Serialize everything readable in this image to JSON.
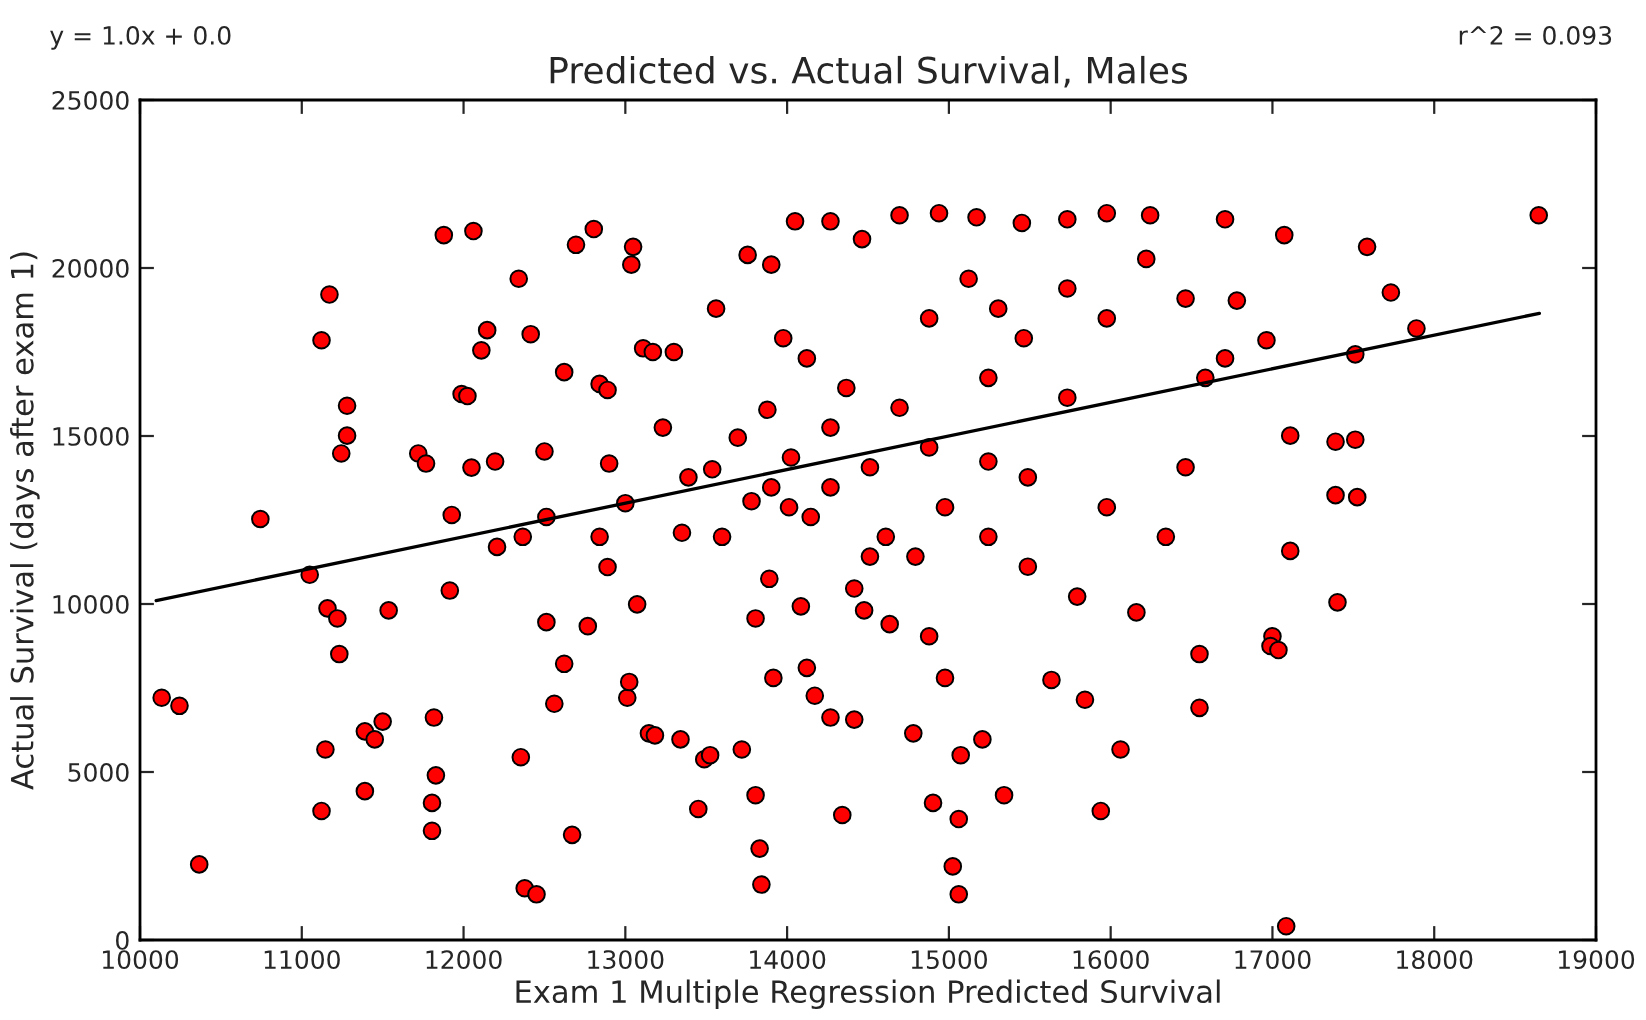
{
  "chart_data": {
    "type": "scatter",
    "title": "Predicted vs. Actual Survival, Males",
    "xlabel": "Exam 1 Multiple Regression Predicted Survival",
    "ylabel": "Actual Survival (days after exam 1)",
    "annotations": [
      "y = 1.0x + 0.0",
      "r^2 = 0.093"
    ],
    "xlim": [
      10000,
      19000
    ],
    "xticks": [
      10000,
      11000,
      12000,
      13000,
      14000,
      15000,
      16000,
      17000,
      18000,
      19000
    ],
    "ylim": [
      0,
      25000
    ],
    "yticks": [
      0,
      5000,
      10000,
      15000,
      20000,
      25000
    ],
    "grid": false,
    "series": [
      {
        "color": "#ff0000",
        "marker": "circle",
        "x": [
          10134,
          10244,
          10366,
          10744,
          11049,
          11122,
          11171,
          11159,
          11220,
          11232,
          11280,
          11280,
          11390,
          11451,
          11390,
          11500,
          11146,
          11122,
          11244,
          11537,
          11720,
          11768,
          11878,
          12061,
          11988,
          12024,
          12110,
          12146,
          12049,
          12195,
          12207,
          11927,
          11805,
          11805,
          11817,
          11829,
          11915,
          12341,
          12415,
          12500,
          12366,
          12622,
          12512,
          12512,
          12622,
          12561,
          12354,
          12378,
          12451,
          12671,
          12695,
          12805,
          12841,
          12890,
          12900,
          13000,
          12890,
          12768,
          12841,
          13048,
          13037,
          13110,
          13170,
          13300,
          13350,
          13012,
          13024,
          13073,
          13146,
          13183,
          13341,
          13451,
          13488,
          13524,
          13720,
          13805,
          13830,
          13841,
          13890,
          13915,
          13805,
          14012,
          14085,
          14122,
          14171,
          14268,
          14341,
          14415,
          14415,
          14476,
          14512,
          14610,
          14634,
          14780,
          14878,
          14976,
          15024,
          15061,
          15073,
          15061,
          14902,
          15207,
          15341,
          15634,
          15841,
          15939,
          16159,
          16061,
          16549,
          16549,
          17000,
          16988,
          17037,
          17085,
          17110,
          17402,
          17110,
          17390,
          17390,
          17512,
          17512,
          17524,
          17585,
          17732,
          17890,
          18646,
          17073,
          16780,
          16707,
          16963,
          16707,
          16244,
          15976,
          15732,
          15451,
          15171,
          14939,
          14695,
          14463,
          14268,
          14049,
          13902,
          13756,
          13976,
          14122,
          14366,
          14695,
          14878,
          15122,
          15305,
          15463,
          15732,
          15976,
          16220,
          16463,
          16585,
          15732,
          15244,
          14878,
          14512,
          14268,
          14024,
          14268,
          15244,
          15488,
          15976,
          16341,
          16463,
          14976,
          15244,
          15488,
          15793,
          14793,
          13878,
          13561,
          13695,
          13537,
          13780,
          13598,
          13390,
          13232,
          14146,
          13902
        ],
        "values": [
          7210,
          6970,
          2250,
          12530,
          10870,
          17850,
          19210,
          9870,
          9570,
          8510,
          15900,
          15010,
          6210,
          5970,
          4430,
          6500,
          5670,
          3840,
          14480,
          9810,
          14480,
          14180,
          20980,
          21100,
          16250,
          16190,
          17550,
          18150,
          14060,
          14240,
          11700,
          12650,
          4080,
          3250,
          6620,
          4900,
          10400,
          19680,
          18030,
          14540,
          12000,
          16900,
          12590,
          9460,
          8220,
          7030,
          5440,
          1540,
          1360,
          3130,
          20690,
          21160,
          16550,
          16370,
          14180,
          13000,
          11100,
          9340,
          12000,
          20630,
          20100,
          17610,
          17500,
          17500,
          12120,
          7210,
          7680,
          9990,
          6150,
          6090,
          5970,
          3900,
          5380,
          5500,
          5670,
          9570,
          2720,
          1650,
          10750,
          7800,
          4310,
          12880,
          9930,
          8100,
          7270,
          6620,
          3720,
          6560,
          10460,
          9810,
          11410,
          12000,
          9400,
          6150,
          9040,
          7800,
          2190,
          3600,
          5500,
          1360,
          4080,
          5970,
          4310,
          7740,
          7150,
          3840,
          9750,
          5670,
          8510,
          6910,
          9040,
          8750,
          8630,
          410,
          11580,
          10050,
          15010,
          13240,
          14830,
          14890,
          17430,
          13180,
          20630,
          19270,
          18200,
          21570,
          20980,
          19030,
          17310,
          17850,
          21450,
          21570,
          21630,
          21450,
          21340,
          21510,
          21630,
          21570,
          20860,
          21390,
          21390,
          20100,
          20390,
          17910,
          17310,
          16430,
          15840,
          18500,
          19680,
          18790,
          17910,
          19390,
          18500,
          20270,
          19090,
          16730,
          16140,
          16730,
          14660,
          14070,
          13470,
          14360,
          15250,
          14240,
          13770,
          12880,
          12000,
          14070,
          12880,
          12000,
          11110,
          10220,
          11410,
          15780,
          18790,
          14950,
          14010,
          13060,
          12000,
          13770,
          15250,
          12590,
          13470
        ]
      },
      {
        "type": "line",
        "color": "#000000",
        "x": [
          10100,
          18650
        ],
        "values": [
          10100,
          18650
        ]
      }
    ]
  }
}
